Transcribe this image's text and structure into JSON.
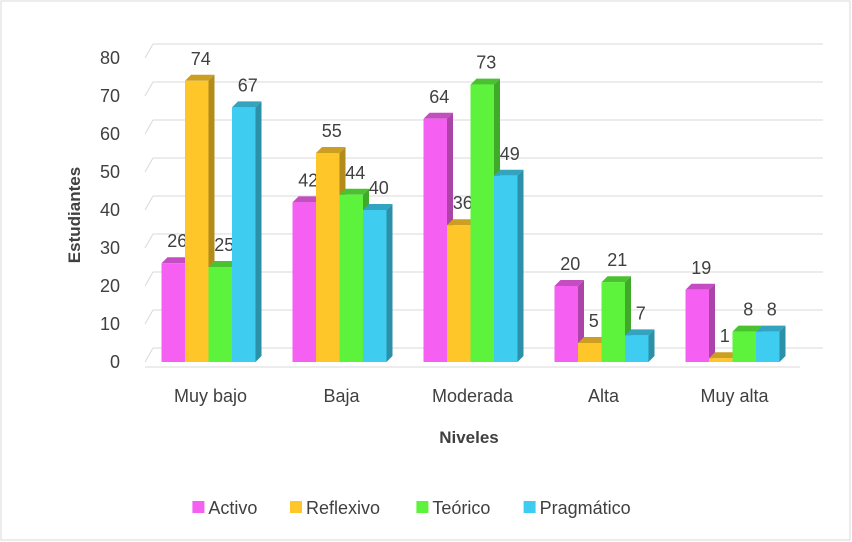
{
  "chart_data": {
    "type": "bar",
    "categories": [
      "Muy bajo",
      "Baja",
      "Moderada",
      "Alta",
      "Muy alta"
    ],
    "series": [
      {
        "name": "Activo",
        "color": "#f560f2",
        "values": [
          26,
          42,
          64,
          20,
          19
        ]
      },
      {
        "name": "Reflexivo",
        "color": "#ffc629",
        "values": [
          74,
          55,
          36,
          5,
          1
        ]
      },
      {
        "name": "Teórico",
        "color": "#5df23c",
        "values": [
          25,
          44,
          73,
          21,
          8
        ]
      },
      {
        "name": "Pragmático",
        "color": "#3ecdf0",
        "values": [
          67,
          40,
          49,
          7,
          8
        ]
      }
    ],
    "ylim": [
      0,
      80
    ],
    "yticks": [
      0,
      10,
      20,
      30,
      40,
      50,
      60,
      70,
      80
    ],
    "xlabel": "Niveles",
    "ylabel": "Estudiantes",
    "grid": true,
    "legend": "bottom"
  }
}
